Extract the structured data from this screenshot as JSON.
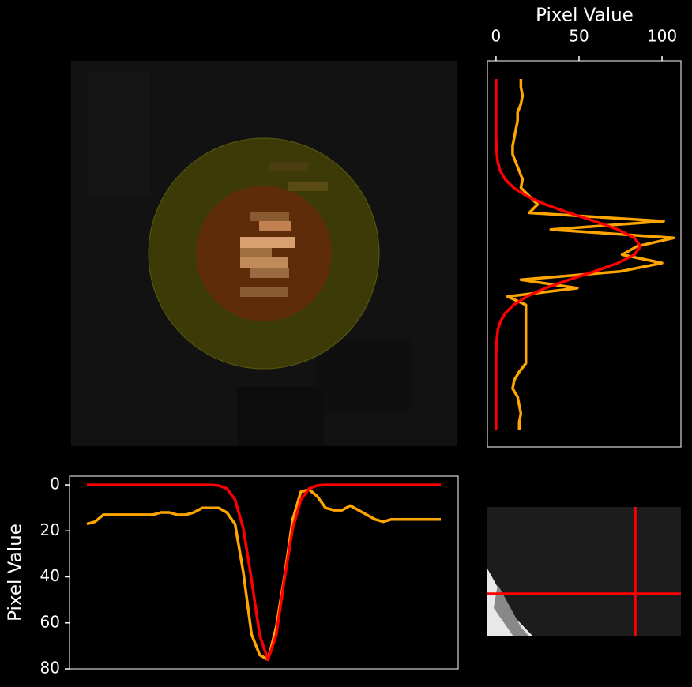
{
  "chart_data": [
    {
      "type": "line",
      "xlabel": "Pixel Value",
      "xlim": [
        -5.2,
        111.4
      ],
      "xticks": [
        0,
        50,
        100
      ],
      "series": [
        {
          "color": "#ffa500",
          "values": [
            15,
            15,
            16,
            15,
            13,
            13,
            12,
            11,
            10,
            10,
            12,
            14,
            16,
            15,
            20,
            25,
            20,
            101,
            33,
            107,
            85,
            76,
            100,
            75,
            15,
            49,
            7,
            18,
            18,
            18,
            18,
            18,
            18,
            18,
            18,
            14,
            11,
            10,
            13,
            14,
            15,
            14,
            14
          ]
        },
        {
          "color": "#ff0000",
          "values": [
            0,
            0,
            0,
            0,
            0,
            0,
            0,
            0,
            0.2,
            0.5,
            1.1,
            2.6,
            5.5,
            10.6,
            18.5,
            29.8,
            43.9,
            59.4,
            73.4,
            83.4,
            87,
            83.4,
            73.4,
            59.4,
            43.9,
            29.8,
            18.5,
            10.6,
            5.5,
            2.6,
            1.1,
            0.5,
            0.2,
            0,
            0,
            0,
            0,
            0,
            0,
            0,
            0,
            0,
            0
          ]
        }
      ]
    },
    {
      "type": "line",
      "ylabel": "Pixel Value",
      "ylim": [
        80,
        -3.8
      ],
      "yticks": [
        0,
        20,
        40,
        60,
        80
      ],
      "series": [
        {
          "color": "#ffa500",
          "values": [
            17,
            16,
            13,
            13,
            13,
            13,
            13,
            13,
            13,
            12,
            12,
            13,
            13,
            12,
            10,
            10,
            10,
            12,
            17,
            38,
            65,
            74,
            76,
            62,
            40,
            15,
            3,
            2,
            5,
            10,
            11,
            11,
            9,
            11,
            13,
            15,
            16,
            15,
            15,
            15,
            15,
            15,
            15,
            15
          ]
        },
        {
          "color": "#ff0000",
          "values": [
            0,
            0,
            0,
            0,
            0,
            0,
            0,
            0,
            0,
            0,
            0,
            0,
            0,
            0,
            0,
            0,
            0.3,
            1.6,
            6.4,
            18.9,
            41.2,
            65.5,
            76,
            65.5,
            41.2,
            18.9,
            6.4,
            1.6,
            0.3,
            0,
            0,
            0,
            0,
            0,
            0,
            0,
            0,
            0,
            0,
            0,
            0,
            0,
            0,
            0
          ]
        }
      ]
    }
  ]
}
